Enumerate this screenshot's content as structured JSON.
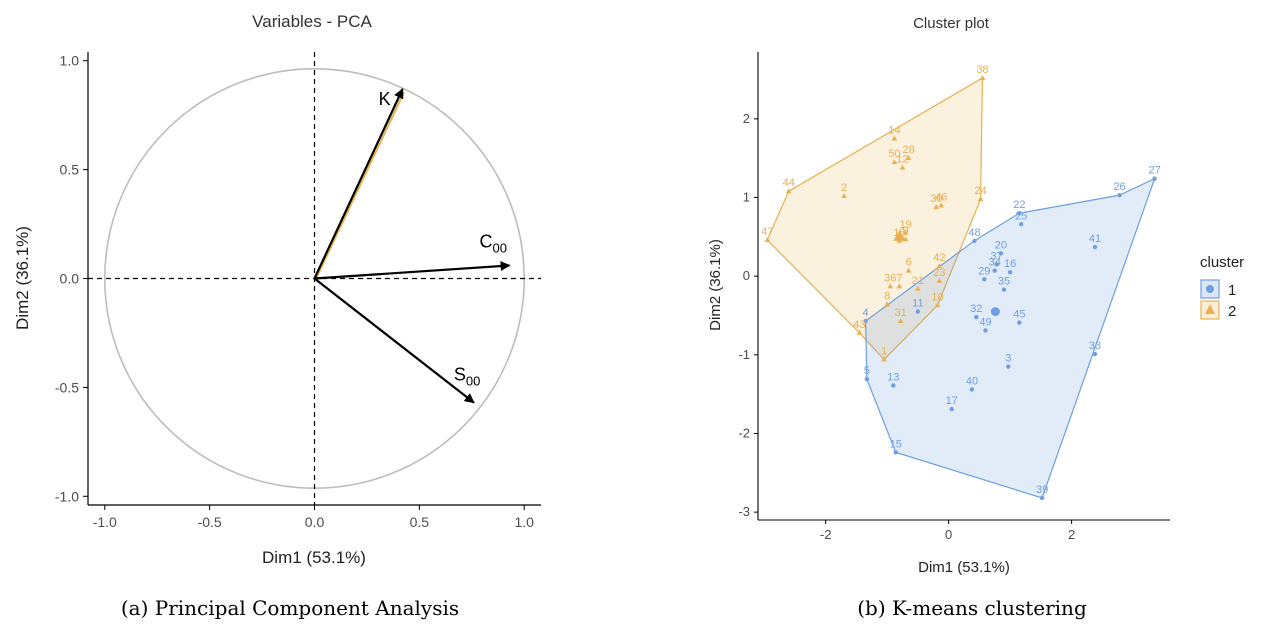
{
  "chart_data": [
    {
      "type": "scatter",
      "subtype": "pca-variable-correlation-circle",
      "title": "Variables - PCA",
      "xlabel": "Dim1 (53.1%)",
      "ylabel": "Dim2 (36.1%)",
      "xlim": [
        -1.08,
        1.08
      ],
      "ylim": [
        -1.04,
        1.04
      ],
      "xticks": [
        "-1.0",
        "-0.5",
        "0.0",
        "0.5",
        "1.0"
      ],
      "yticks": [
        "-1.0",
        "-0.5",
        "0.0",
        "0.5",
        "1.0"
      ],
      "caption": "(a) Principal Component Analysis",
      "vectors": [
        {
          "name": "K",
          "x": 0.42,
          "y": 0.87
        },
        {
          "name": "C",
          "sub": "00",
          "x": 0.93,
          "y": 0.06
        },
        {
          "name": "S",
          "sub": "00",
          "x": 0.76,
          "y": -0.57
        }
      ]
    },
    {
      "type": "scatter",
      "subtype": "k-means-cluster-plot",
      "title": "Cluster plot",
      "xlabel": "Dim1 (53.1%)",
      "ylabel": "Dim2 (36.1%)",
      "xlim": [
        -3.1,
        3.6
      ],
      "ylim": [
        -3.1,
        2.85
      ],
      "xticks": [
        "-2",
        "0",
        "2"
      ],
      "yticks": [
        "-3",
        "-2",
        "-1",
        "0",
        "1",
        "2"
      ],
      "caption": "(b) K-means clustering",
      "legend": {
        "title": "cluster",
        "entries": [
          "1",
          "2"
        ],
        "position": "right"
      },
      "colors": {
        "cluster1": "#6f9fe0",
        "cluster2": "#e8b050"
      },
      "centers": [
        {
          "cluster": "1",
          "x": 0.76,
          "y": -0.45
        },
        {
          "cluster": "2",
          "x": -0.8,
          "y": 0.5
        }
      ],
      "hulls": {
        "1": [
          "4",
          "5",
          "15",
          "39",
          "27",
          "26",
          "22",
          "48"
        ],
        "2": [
          "43",
          "47",
          "44",
          "38",
          "24",
          "10",
          "1"
        ]
      },
      "points": [
        {
          "id": "1",
          "x": -1.05,
          "y": -1.06,
          "c": "2"
        },
        {
          "id": "2",
          "x": -1.7,
          "y": 1.02,
          "c": "2"
        },
        {
          "id": "4",
          "x": -1.35,
          "y": -0.57,
          "c": "1"
        },
        {
          "id": "5",
          "x": -1.33,
          "y": -1.31,
          "c": "1"
        },
        {
          "id": "6",
          "x": -0.65,
          "y": 0.07,
          "c": "2"
        },
        {
          "id": "7",
          "x": -0.8,
          "y": -0.13,
          "c": "2"
        },
        {
          "id": "8",
          "x": -1.0,
          "y": -0.36,
          "c": "2"
        },
        {
          "id": "9",
          "x": -0.7,
          "y": 0.47,
          "c": "2"
        },
        {
          "id": "10",
          "x": -0.18,
          "y": -0.37,
          "c": "2"
        },
        {
          "id": "11",
          "x": -0.5,
          "y": -0.45,
          "c": "1"
        },
        {
          "id": "12",
          "x": -0.75,
          "y": 1.38,
          "c": "2"
        },
        {
          "id": "13",
          "x": -0.9,
          "y": -1.39,
          "c": "1"
        },
        {
          "id": "14",
          "x": -0.88,
          "y": 1.75,
          "c": "2"
        },
        {
          "id": "15",
          "x": -0.86,
          "y": -2.24,
          "c": "1"
        },
        {
          "id": "16",
          "x": 1.0,
          "y": 0.05,
          "c": "1"
        },
        {
          "id": "17",
          "x": 0.05,
          "y": -1.69,
          "c": "1"
        },
        {
          "id": "18",
          "x": -0.8,
          "y": 0.45,
          "c": "2"
        },
        {
          "id": "19",
          "x": -0.7,
          "y": 0.55,
          "c": "2"
        },
        {
          "id": "20",
          "x": 0.85,
          "y": 0.29,
          "c": "1"
        },
        {
          "id": "21",
          "x": -0.5,
          "y": -0.16,
          "c": "2"
        },
        {
          "id": "22",
          "x": 1.15,
          "y": 0.8,
          "c": "1"
        },
        {
          "id": "23",
          "x": -0.15,
          "y": -0.06,
          "c": "2"
        },
        {
          "id": "24",
          "x": 0.52,
          "y": 0.98,
          "c": "2"
        },
        {
          "id": "25",
          "x": 1.18,
          "y": 0.66,
          "c": "1"
        },
        {
          "id": "26",
          "x": 2.78,
          "y": 1.03,
          "c": "1"
        },
        {
          "id": "27",
          "x": 3.35,
          "y": 1.24,
          "c": "1"
        },
        {
          "id": "28",
          "x": -0.65,
          "y": 1.5,
          "c": "2"
        },
        {
          "id": "29",
          "x": 0.58,
          "y": -0.04,
          "c": "1"
        },
        {
          "id": "30",
          "x": -0.2,
          "y": 0.88,
          "c": "2"
        },
        {
          "id": "31",
          "x": -0.78,
          "y": -0.57,
          "c": "2"
        },
        {
          "id": "32",
          "x": 0.45,
          "y": -0.52,
          "c": "1"
        },
        {
          "id": "33",
          "x": 2.38,
          "y": -0.99,
          "c": "1"
        },
        {
          "id": "34",
          "x": 0.75,
          "y": 0.07,
          "c": "1"
        },
        {
          "id": "35",
          "x": 0.9,
          "y": -0.17,
          "c": "1"
        },
        {
          "id": "36",
          "x": -0.95,
          "y": -0.13,
          "c": "2"
        },
        {
          "id": "37",
          "x": 0.78,
          "y": 0.15,
          "c": "1"
        },
        {
          "id": "38",
          "x": 0.55,
          "y": 2.52,
          "c": "2"
        },
        {
          "id": "39",
          "x": 1.52,
          "y": -2.82,
          "c": "1"
        },
        {
          "id": "40",
          "x": 0.38,
          "y": -1.44,
          "c": "1"
        },
        {
          "id": "41",
          "x": 2.38,
          "y": 0.37,
          "c": "1"
        },
        {
          "id": "42",
          "x": -0.15,
          "y": 0.13,
          "c": "2"
        },
        {
          "id": "43",
          "x": -1.45,
          "y": -0.72,
          "c": "2"
        },
        {
          "id": "44",
          "x": -2.6,
          "y": 1.08,
          "c": "2"
        },
        {
          "id": "45",
          "x": 1.15,
          "y": -0.59,
          "c": "1"
        },
        {
          "id": "46",
          "x": -0.12,
          "y": 0.9,
          "c": "2"
        },
        {
          "id": "47",
          "x": -2.95,
          "y": 0.46,
          "c": "2"
        },
        {
          "id": "48",
          "x": 0.42,
          "y": 0.45,
          "c": "1"
        },
        {
          "id": "49",
          "x": 0.6,
          "y": -0.69,
          "c": "1"
        },
        {
          "id": "50",
          "x": -0.88,
          "y": 1.45,
          "c": "2"
        },
        {
          "id": "3",
          "x": 0.97,
          "y": -1.15,
          "c": "1"
        }
      ]
    }
  ]
}
